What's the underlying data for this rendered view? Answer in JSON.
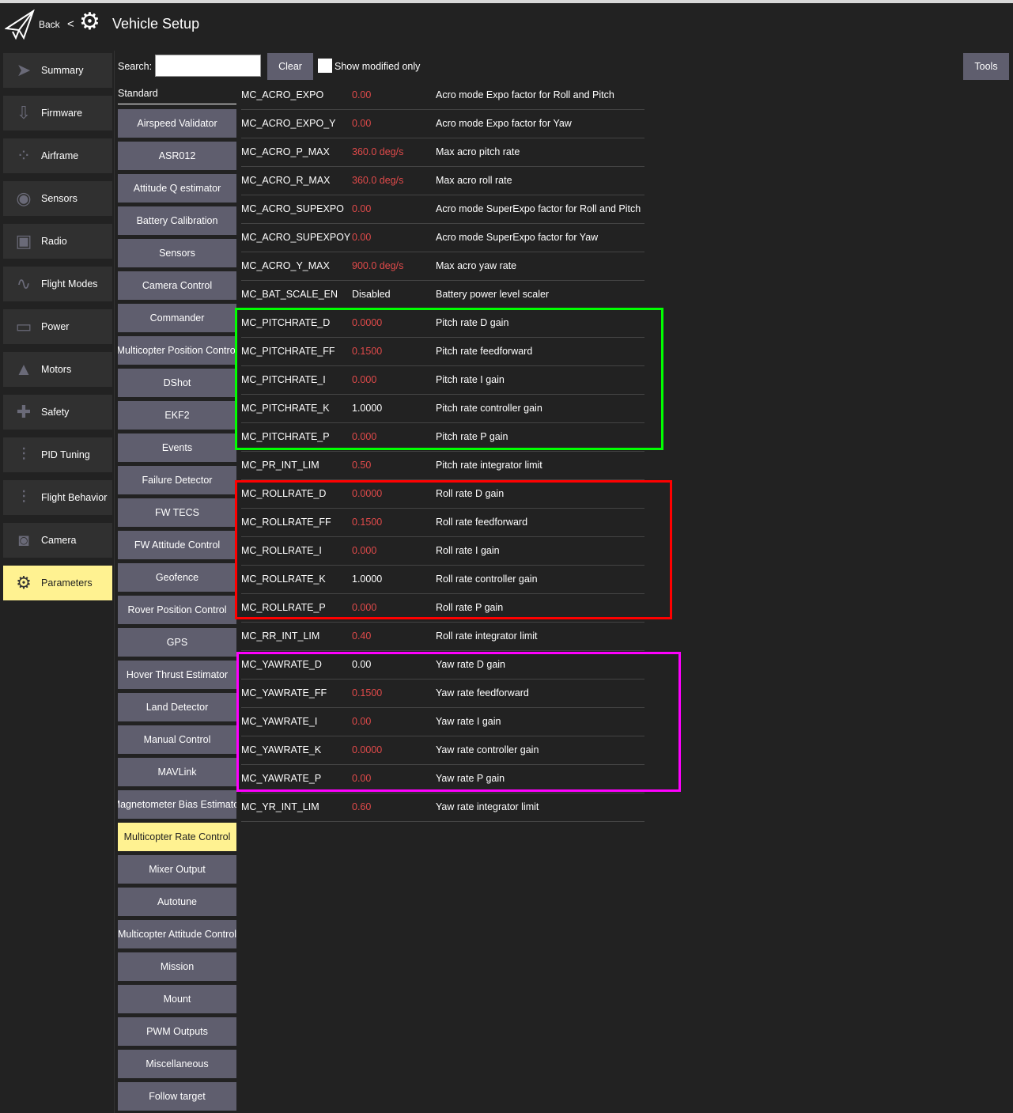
{
  "header": {
    "back": "Back",
    "separator": "<",
    "title": "Vehicle Setup"
  },
  "sidebar": [
    {
      "label": "Summary",
      "icon": "paper-plane-icon",
      "glyph": "➤"
    },
    {
      "label": "Firmware",
      "icon": "download-icon",
      "glyph": "⇩"
    },
    {
      "label": "Airframe",
      "icon": "airframe-icon",
      "glyph": "⁘"
    },
    {
      "label": "Sensors",
      "icon": "sensors-icon",
      "glyph": "◉"
    },
    {
      "label": "Radio",
      "icon": "radio-icon",
      "glyph": "▣"
    },
    {
      "label": "Flight Modes",
      "icon": "flight-modes-icon",
      "glyph": "∿"
    },
    {
      "label": "Power",
      "icon": "power-icon",
      "glyph": "▭"
    },
    {
      "label": "Motors",
      "icon": "motors-icon",
      "glyph": "▲"
    },
    {
      "label": "Safety",
      "icon": "safety-icon",
      "glyph": "✚"
    },
    {
      "label": "PID Tuning",
      "icon": "sliders-icon",
      "glyph": "⫶"
    },
    {
      "label": "Flight Behavior",
      "icon": "sliders-icon",
      "glyph": "⫶"
    },
    {
      "label": "Camera",
      "icon": "camera-icon",
      "glyph": "◙"
    },
    {
      "label": "Parameters",
      "icon": "gears-icon",
      "glyph": "⚙",
      "active": true
    }
  ],
  "toolbar": {
    "search_label": "Search:",
    "search_value": "",
    "clear": "Clear",
    "show_modified": "Show modified only",
    "tools": "Tools"
  },
  "category": "Standard",
  "groups": [
    "Airspeed Validator",
    "ASR012",
    "Attitude Q estimator",
    "Battery Calibration",
    "Sensors",
    "Camera Control",
    "Commander",
    "Multicopter Position Control",
    "DShot",
    "EKF2",
    "Events",
    "Failure Detector",
    "FW TECS",
    "FW Attitude Control",
    "Geofence",
    "Rover Position Control",
    "GPS",
    "Hover Thrust Estimator",
    "Land Detector",
    "Manual Control",
    "MAVLink",
    "Magnetometer Bias Estimator",
    "Multicopter Rate Control",
    "Mixer Output",
    "Autotune",
    "Multicopter Attitude Control",
    "Mission",
    "Mount",
    "PWM Outputs",
    "Miscellaneous",
    "Follow target"
  ],
  "active_group": "Multicopter Rate Control",
  "params": [
    {
      "name": "MC_ACRO_EXPO",
      "value": "0.00",
      "modified": true,
      "desc": "Acro mode Expo factor for Roll and Pitch"
    },
    {
      "name": "MC_ACRO_EXPO_Y",
      "value": "0.00",
      "modified": true,
      "desc": "Acro mode Expo factor for Yaw"
    },
    {
      "name": "MC_ACRO_P_MAX",
      "value": "360.0 deg/s",
      "modified": true,
      "desc": "Max acro pitch rate"
    },
    {
      "name": "MC_ACRO_R_MAX",
      "value": "360.0 deg/s",
      "modified": true,
      "desc": "Max acro roll rate"
    },
    {
      "name": "MC_ACRO_SUPEXPO",
      "value": "0.00",
      "modified": true,
      "desc": "Acro mode SuperExpo factor for Roll and Pitch"
    },
    {
      "name": "MC_ACRO_SUPEXPOY",
      "value": "0.00",
      "modified": true,
      "desc": "Acro mode SuperExpo factor for Yaw"
    },
    {
      "name": "MC_ACRO_Y_MAX",
      "value": "900.0 deg/s",
      "modified": true,
      "desc": "Max acro yaw rate"
    },
    {
      "name": "MC_BAT_SCALE_EN",
      "value": "Disabled",
      "modified": false,
      "desc": "Battery power level scaler"
    },
    {
      "name": "MC_PITCHRATE_D",
      "value": "0.0000",
      "modified": true,
      "desc": "Pitch rate D gain"
    },
    {
      "name": "MC_PITCHRATE_FF",
      "value": "0.1500",
      "modified": true,
      "desc": "Pitch rate feedforward"
    },
    {
      "name": "MC_PITCHRATE_I",
      "value": "0.000",
      "modified": true,
      "desc": "Pitch rate I gain"
    },
    {
      "name": "MC_PITCHRATE_K",
      "value": "1.0000",
      "modified": false,
      "desc": "Pitch rate controller gain"
    },
    {
      "name": "MC_PITCHRATE_P",
      "value": "0.000",
      "modified": true,
      "desc": "Pitch rate P gain"
    },
    {
      "name": "MC_PR_INT_LIM",
      "value": "0.50",
      "modified": true,
      "desc": "Pitch rate integrator limit"
    },
    {
      "name": "MC_ROLLRATE_D",
      "value": "0.0000",
      "modified": true,
      "desc": "Roll rate D gain"
    },
    {
      "name": "MC_ROLLRATE_FF",
      "value": "0.1500",
      "modified": true,
      "desc": "Roll rate feedforward"
    },
    {
      "name": "MC_ROLLRATE_I",
      "value": "0.000",
      "modified": true,
      "desc": "Roll rate I gain"
    },
    {
      "name": "MC_ROLLRATE_K",
      "value": "1.0000",
      "modified": false,
      "desc": "Roll rate controller gain"
    },
    {
      "name": "MC_ROLLRATE_P",
      "value": "0.000",
      "modified": true,
      "desc": "Roll rate P gain"
    },
    {
      "name": "MC_RR_INT_LIM",
      "value": "0.40",
      "modified": true,
      "desc": "Roll rate integrator limit"
    },
    {
      "name": "MC_YAWRATE_D",
      "value": "0.00",
      "modified": false,
      "desc": "Yaw rate D gain"
    },
    {
      "name": "MC_YAWRATE_FF",
      "value": "0.1500",
      "modified": true,
      "desc": "Yaw rate feedforward"
    },
    {
      "name": "MC_YAWRATE_I",
      "value": "0.00",
      "modified": true,
      "desc": "Yaw rate I gain"
    },
    {
      "name": "MC_YAWRATE_K",
      "value": "0.0000",
      "modified": true,
      "desc": "Yaw rate controller gain"
    },
    {
      "name": "MC_YAWRATE_P",
      "value": "0.00",
      "modified": true,
      "desc": "Yaw rate P gain"
    },
    {
      "name": "MC_YR_INT_LIM",
      "value": "0.60",
      "modified": true,
      "desc": "Yaw rate integrator limit"
    }
  ],
  "colors": {
    "modified_value": "#e04a4a",
    "active": "#fff291",
    "pitch_box": "#00ff00",
    "roll_box": "#ff0000",
    "yaw_box": "#ff00ff"
  }
}
